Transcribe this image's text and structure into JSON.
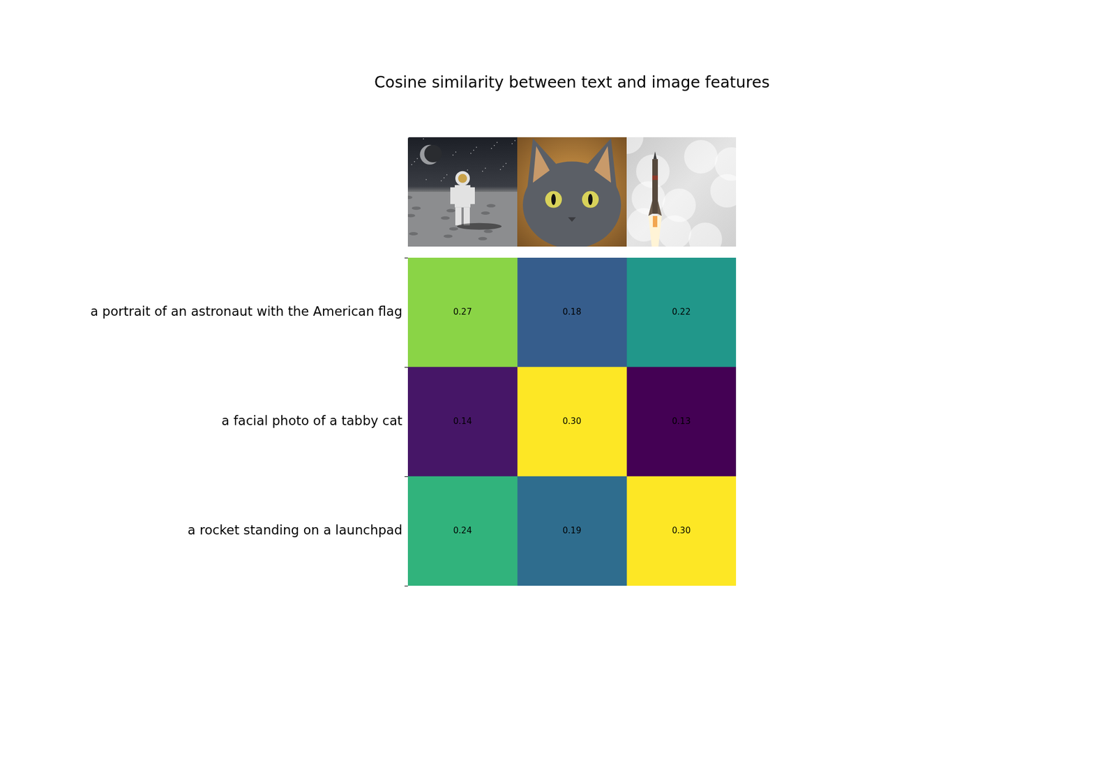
{
  "chart_data": {
    "type": "heatmap",
    "title": "Cosine similarity between text and image features",
    "rows": [
      "a portrait of an astronaut with the American flag",
      "a facial photo of a tabby cat",
      "a rocket standing on a launchpad"
    ],
    "columns": [
      null,
      null,
      null
    ],
    "cells": [
      [
        0.27,
        0.18,
        0.22
      ],
      [
        0.14,
        0.3,
        0.13
      ],
      [
        0.24,
        0.19,
        0.3
      ]
    ],
    "value_labels": [
      [
        "0.27",
        "0.18",
        "0.22"
      ],
      [
        "0.14",
        "0.30",
        "0.13"
      ],
      [
        "0.24",
        "0.19",
        "0.30"
      ]
    ],
    "data_labels": true,
    "tick_labels": "y"
  }
}
